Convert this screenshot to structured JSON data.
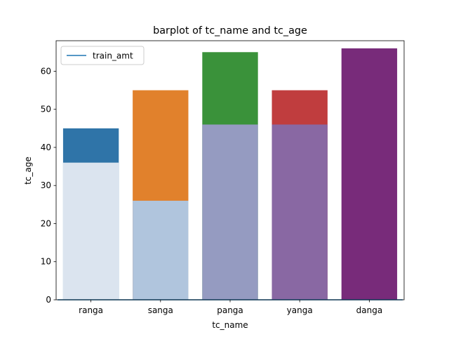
{
  "chart_data": {
    "type": "bar",
    "title": "barplot of tc_name and tc_age",
    "xlabel": "tc_name",
    "ylabel": "tc_age",
    "categories": [
      "ranga",
      "sanga",
      "panga",
      "yanga",
      "danga"
    ],
    "ylim": [
      0,
      68
    ],
    "yticks": [
      0,
      10,
      20,
      30,
      40,
      50,
      60
    ],
    "series": [
      {
        "values": [
          45,
          55,
          65,
          55,
          66
        ],
        "colors": [
          "#2f74a8",
          "#e1812c",
          "#3a923a",
          "#c03d3e",
          "#782b7a"
        ]
      },
      {
        "values": [
          36,
          26,
          46,
          46,
          0
        ],
        "colors": [
          "#dbe4ef",
          "#b0c5dd",
          "#959bc1",
          "#8968a3",
          "#782b7a"
        ]
      }
    ],
    "line_series": {
      "name": "train_amt",
      "values": [
        0,
        0,
        0,
        0,
        0
      ],
      "color": "#1f77b4"
    },
    "legend": {
      "position": "top-left",
      "entries": [
        "train_amt"
      ]
    },
    "grid": false
  }
}
